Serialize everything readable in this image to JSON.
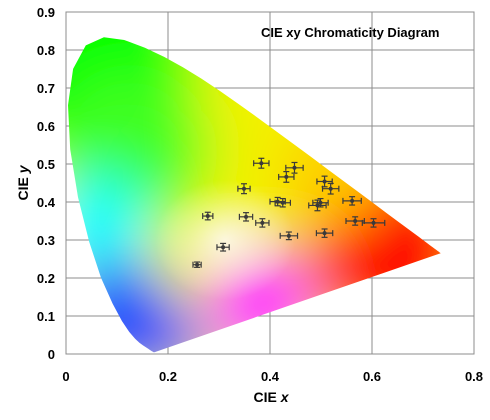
{
  "chart_data": {
    "type": "scatter",
    "title": "CIE xy Chromaticity Diagram",
    "xlabel": {
      "prefix": "CIE ",
      "var": "x"
    },
    "ylabel": {
      "prefix": "CIE ",
      "var": "y"
    },
    "xlim": [
      0,
      0.8
    ],
    "ylim": [
      0,
      0.9
    ],
    "x_ticks": [
      "0",
      "0.2",
      "0.4",
      "0.6",
      "0.8"
    ],
    "y_ticks": [
      "0",
      "0.1",
      "0.2",
      "0.3",
      "0.4",
      "0.5",
      "0.6",
      "0.7",
      "0.8",
      "0.9"
    ],
    "grid": true,
    "marker_color": "#3a3a3a",
    "error_bar_color": "#3a3a3a",
    "points": [
      {
        "x": 0.257,
        "y": 0.235,
        "xerr": 0.008,
        "yerr": 0.007
      },
      {
        "x": 0.278,
        "y": 0.363,
        "xerr": 0.01,
        "yerr": 0.01
      },
      {
        "x": 0.308,
        "y": 0.281,
        "xerr": 0.012,
        "yerr": 0.01
      },
      {
        "x": 0.349,
        "y": 0.435,
        "xerr": 0.012,
        "yerr": 0.013
      },
      {
        "x": 0.353,
        "y": 0.361,
        "xerr": 0.013,
        "yerr": 0.011
      },
      {
        "x": 0.383,
        "y": 0.502,
        "xerr": 0.015,
        "yerr": 0.013
      },
      {
        "x": 0.385,
        "y": 0.345,
        "xerr": 0.013,
        "yerr": 0.011
      },
      {
        "x": 0.415,
        "y": 0.401,
        "xerr": 0.015,
        "yerr": 0.011
      },
      {
        "x": 0.425,
        "y": 0.398,
        "xerr": 0.015,
        "yerr": 0.011
      },
      {
        "x": 0.432,
        "y": 0.466,
        "xerr": 0.015,
        "yerr": 0.014
      },
      {
        "x": 0.437,
        "y": 0.311,
        "xerr": 0.017,
        "yerr": 0.01
      },
      {
        "x": 0.448,
        "y": 0.49,
        "xerr": 0.017,
        "yerr": 0.014
      },
      {
        "x": 0.493,
        "y": 0.391,
        "xerr": 0.017,
        "yerr": 0.014
      },
      {
        "x": 0.499,
        "y": 0.398,
        "xerr": 0.015,
        "yerr": 0.011
      },
      {
        "x": 0.507,
        "y": 0.454,
        "xerr": 0.015,
        "yerr": 0.014
      },
      {
        "x": 0.507,
        "y": 0.318,
        "xerr": 0.016,
        "yerr": 0.011
      },
      {
        "x": 0.519,
        "y": 0.435,
        "xerr": 0.016,
        "yerr": 0.014
      },
      {
        "x": 0.561,
        "y": 0.403,
        "xerr": 0.018,
        "yerr": 0.011
      },
      {
        "x": 0.567,
        "y": 0.35,
        "xerr": 0.018,
        "yerr": 0.011
      },
      {
        "x": 0.603,
        "y": 0.345,
        "xerr": 0.022,
        "yerr": 0.011
      }
    ]
  }
}
